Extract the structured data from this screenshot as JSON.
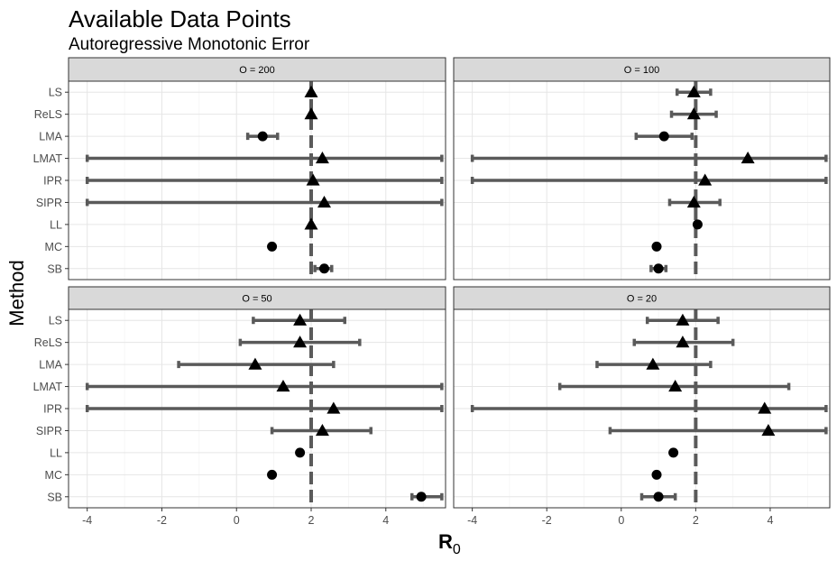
{
  "title": "Available Data Points",
  "subtitle": "Autoregressive Monotonic Error",
  "ylabel": "Method",
  "xlabel_main": "R",
  "xlabel_sub": "0",
  "chart_data": {
    "type": "scatter",
    "chart_kind": "point-range (faceted)",
    "reference_line_x": 2,
    "xlim": [
      -4.5,
      5.6
    ],
    "xticks": [
      -4,
      -2,
      0,
      2,
      4
    ],
    "methods": [
      "LS",
      "ReLS",
      "LMA",
      "LMAT",
      "IPR",
      "SIPR",
      "LL",
      "MC",
      "SB"
    ],
    "grid": true,
    "colors": {
      "errorbar": "#5a5a5a",
      "point": "#000000",
      "refline": "#5a5a5a",
      "strip": "#d9d9d9"
    },
    "facets": [
      {
        "label": "O = 200",
        "points": [
          {
            "method": "LS",
            "estimate": 2.0,
            "lower": 2.0,
            "upper": 2.0,
            "shape": "triangle"
          },
          {
            "method": "ReLS",
            "estimate": 2.0,
            "lower": 2.0,
            "upper": 2.0,
            "shape": "triangle"
          },
          {
            "method": "LMA",
            "estimate": 0.7,
            "lower": 0.3,
            "upper": 1.1,
            "shape": "circle"
          },
          {
            "method": "LMAT",
            "estimate": 2.3,
            "lower": -4.0,
            "upper": 5.5,
            "shape": "triangle"
          },
          {
            "method": "IPR",
            "estimate": 2.05,
            "lower": -4.0,
            "upper": 5.5,
            "shape": "triangle"
          },
          {
            "method": "SIPR",
            "estimate": 2.35,
            "lower": -4.0,
            "upper": 5.5,
            "shape": "triangle"
          },
          {
            "method": "LL",
            "estimate": 2.0,
            "lower": 2.0,
            "upper": 2.0,
            "shape": "triangle"
          },
          {
            "method": "MC",
            "estimate": 0.95,
            "lower": 0.95,
            "upper": 0.95,
            "shape": "circle"
          },
          {
            "method": "SB",
            "estimate": 2.35,
            "lower": 2.1,
            "upper": 2.55,
            "shape": "circle"
          }
        ]
      },
      {
        "label": "O = 100",
        "points": [
          {
            "method": "LS",
            "estimate": 1.95,
            "lower": 1.5,
            "upper": 2.4,
            "shape": "triangle"
          },
          {
            "method": "ReLS",
            "estimate": 1.95,
            "lower": 1.35,
            "upper": 2.55,
            "shape": "triangle"
          },
          {
            "method": "LMA",
            "estimate": 1.15,
            "lower": 0.4,
            "upper": 1.9,
            "shape": "circle"
          },
          {
            "method": "LMAT",
            "estimate": 3.4,
            "lower": -4.0,
            "upper": 5.5,
            "shape": "triangle"
          },
          {
            "method": "IPR",
            "estimate": 2.25,
            "lower": -4.0,
            "upper": 5.5,
            "shape": "triangle"
          },
          {
            "method": "SIPR",
            "estimate": 1.95,
            "lower": 1.3,
            "upper": 2.65,
            "shape": "triangle"
          },
          {
            "method": "LL",
            "estimate": 2.05,
            "lower": 2.05,
            "upper": 2.05,
            "shape": "circle"
          },
          {
            "method": "MC",
            "estimate": 0.95,
            "lower": 0.95,
            "upper": 0.95,
            "shape": "circle"
          },
          {
            "method": "SB",
            "estimate": 1.0,
            "lower": 0.8,
            "upper": 1.2,
            "shape": "circle"
          }
        ]
      },
      {
        "label": "O = 50",
        "points": [
          {
            "method": "LS",
            "estimate": 1.7,
            "lower": 0.45,
            "upper": 2.9,
            "shape": "triangle"
          },
          {
            "method": "ReLS",
            "estimate": 1.7,
            "lower": 0.1,
            "upper": 3.3,
            "shape": "triangle"
          },
          {
            "method": "LMA",
            "estimate": 0.5,
            "lower": -1.55,
            "upper": 2.6,
            "shape": "triangle"
          },
          {
            "method": "LMAT",
            "estimate": 1.25,
            "lower": -4.0,
            "upper": 5.5,
            "shape": "triangle"
          },
          {
            "method": "IPR",
            "estimate": 2.6,
            "lower": -4.0,
            "upper": 5.5,
            "shape": "triangle"
          },
          {
            "method": "SIPR",
            "estimate": 2.3,
            "lower": 0.95,
            "upper": 3.6,
            "shape": "triangle"
          },
          {
            "method": "LL",
            "estimate": 1.7,
            "lower": 1.7,
            "upper": 1.7,
            "shape": "circle"
          },
          {
            "method": "MC",
            "estimate": 0.95,
            "lower": 0.95,
            "upper": 0.95,
            "shape": "circle"
          },
          {
            "method": "SB",
            "estimate": 4.95,
            "lower": 4.7,
            "upper": 5.5,
            "shape": "circle"
          }
        ]
      },
      {
        "label": "O = 20",
        "points": [
          {
            "method": "LS",
            "estimate": 1.65,
            "lower": 0.7,
            "upper": 2.6,
            "shape": "triangle"
          },
          {
            "method": "ReLS",
            "estimate": 1.65,
            "lower": 0.35,
            "upper": 3.0,
            "shape": "triangle"
          },
          {
            "method": "LMA",
            "estimate": 0.85,
            "lower": -0.65,
            "upper": 2.4,
            "shape": "triangle"
          },
          {
            "method": "LMAT",
            "estimate": 1.45,
            "lower": -1.65,
            "upper": 4.5,
            "shape": "triangle"
          },
          {
            "method": "IPR",
            "estimate": 3.85,
            "lower": -4.0,
            "upper": 5.5,
            "shape": "triangle"
          },
          {
            "method": "SIPR",
            "estimate": 3.95,
            "lower": -0.3,
            "upper": 5.5,
            "shape": "triangle"
          },
          {
            "method": "LL",
            "estimate": 1.4,
            "lower": 1.4,
            "upper": 1.4,
            "shape": "circle"
          },
          {
            "method": "MC",
            "estimate": 0.95,
            "lower": 0.95,
            "upper": 0.95,
            "shape": "circle"
          },
          {
            "method": "SB",
            "estimate": 1.0,
            "lower": 0.55,
            "upper": 1.45,
            "shape": "circle"
          }
        ]
      }
    ]
  }
}
